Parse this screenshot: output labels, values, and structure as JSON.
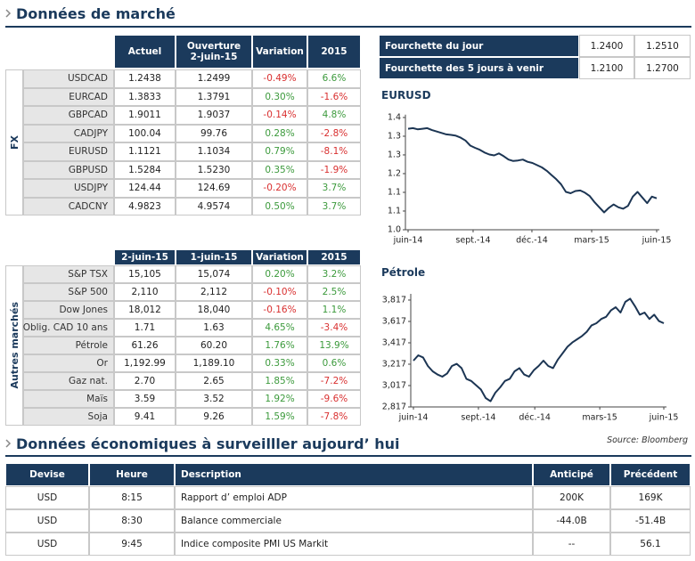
{
  "sections": {
    "market": "Données de marché",
    "economic": "Données économiques à surveilller aujourd’ hui"
  },
  "fx_table": {
    "group": "FX",
    "headers": [
      "Actuel",
      [
        "Ouverture",
        "2-juin-15"
      ],
      "Variation",
      "2015"
    ],
    "rows": [
      [
        "USDCAD",
        "1.2438",
        "1.2499",
        "-0.49%",
        "6.6%"
      ],
      [
        "EURCAD",
        "1.3833",
        "1.3791",
        "0.30%",
        "-1.6%"
      ],
      [
        "GBPCAD",
        "1.9011",
        "1.9037",
        "-0.14%",
        "4.8%"
      ],
      [
        "CADJPY",
        "100.04",
        "99.76",
        "0.28%",
        "-2.8%"
      ],
      [
        "EURUSD",
        "1.1121",
        "1.1034",
        "0.79%",
        "-8.1%"
      ],
      [
        "GBPUSD",
        "1.5284",
        "1.5230",
        "0.35%",
        "-1.9%"
      ],
      [
        "USDJPY",
        "124.44",
        "124.69",
        "-0.20%",
        "3.7%"
      ],
      [
        "CADCNY",
        "4.9823",
        "4.9574",
        "0.50%",
        "3.7%"
      ]
    ]
  },
  "other_table": {
    "group": "Autres marchés",
    "headers": [
      "2-juin-15",
      "1-juin-15",
      "Variation",
      "2015"
    ],
    "rows": [
      [
        "S&P TSX",
        "15,105",
        "15,074",
        "0.20%",
        "3.2%"
      ],
      [
        "S&P 500",
        "2,110",
        "2,112",
        "-0.10%",
        "2.5%"
      ],
      [
        "Dow Jones",
        "18,012",
        "18,040",
        "-0.16%",
        "1.1%"
      ],
      [
        "Oblig. CAD 10 ans",
        "1.71",
        "1.63",
        "4.65%",
        "-3.4%"
      ],
      [
        "Pétrole",
        "61.26",
        "60.20",
        "1.76%",
        "13.9%"
      ],
      [
        "Or",
        "1,192.99",
        "1,189.10",
        "0.33%",
        "0.6%"
      ],
      [
        "Gaz nat.",
        "2.70",
        "2.65",
        "1.85%",
        "-7.2%"
      ],
      [
        "Maïs",
        "3.59",
        "3.52",
        "1.92%",
        "-9.6%"
      ],
      [
        "Soja",
        "9.41",
        "9.26",
        "1.59%",
        "-7.8%"
      ]
    ]
  },
  "range_table": {
    "rows": [
      [
        "Fourchette du jour",
        "1.2400",
        "1.2510"
      ],
      [
        "Fourchette des 5 jours à venir",
        "1.2100",
        "1.2700"
      ]
    ]
  },
  "chart_data": [
    {
      "type": "line",
      "title": "EURUSD",
      "color": "#1c3553",
      "values": [
        1.36,
        1.362,
        1.358,
        1.36,
        1.362,
        1.355,
        1.35,
        1.345,
        1.34,
        1.338,
        1.335,
        1.328,
        1.318,
        1.3,
        1.292,
        1.285,
        1.275,
        1.268,
        1.265,
        1.272,
        1.262,
        1.25,
        1.245,
        1.247,
        1.25,
        1.242,
        1.238,
        1.23,
        1.222,
        1.21,
        1.195,
        1.18,
        1.162,
        1.135,
        1.13,
        1.138,
        1.14,
        1.132,
        1.12,
        1.098,
        1.08,
        1.062,
        1.078,
        1.09,
        1.08,
        1.075,
        1.085,
        1.118,
        1.135,
        1.115,
        1.095,
        1.118,
        1.112
      ],
      "xlim": [
        0,
        52
      ],
      "xticks": [
        {
          "value": 0,
          "label": "juin-14"
        },
        {
          "value": 13.6,
          "label": "sept.-14"
        },
        {
          "value": 25.9,
          "label": "déc.-14"
        },
        {
          "value": 38.4,
          "label": "mars-15"
        },
        {
          "value": 52,
          "label": "juin-15"
        }
      ],
      "ylim": [
        1.0,
        1.41
      ],
      "yticks": [
        {
          "value": 1.0,
          "label": "1.0"
        },
        {
          "value": 1.0667,
          "label": "1.1"
        },
        {
          "value": 1.1333,
          "label": "1.1"
        },
        {
          "value": 1.2,
          "label": "1.2"
        },
        {
          "value": 1.2667,
          "label": "1.3"
        },
        {
          "value": 1.3333,
          "label": "1.3"
        },
        {
          "value": 1.4,
          "label": "1.4"
        }
      ]
    },
    {
      "type": "line",
      "title": "Pétrole",
      "color": "#1c3553",
      "values": [
        3250,
        3300,
        3280,
        3200,
        3150,
        3120,
        3100,
        3130,
        3200,
        3220,
        3180,
        3080,
        3060,
        3020,
        2980,
        2900,
        2870,
        2950,
        3000,
        3060,
        3080,
        3150,
        3180,
        3120,
        3100,
        3160,
        3200,
        3250,
        3200,
        3180,
        3260,
        3320,
        3380,
        3420,
        3450,
        3480,
        3520,
        3580,
        3600,
        3640,
        3660,
        3720,
        3750,
        3700,
        3800,
        3830,
        3760,
        3680,
        3700,
        3640,
        3680,
        3620,
        3600
      ],
      "xlim": [
        0,
        52
      ],
      "xticks": [
        {
          "value": 0,
          "label": "juin-14"
        },
        {
          "value": 13.5,
          "label": "sept.-14"
        },
        {
          "value": 25.2,
          "label": "déc.-14"
        },
        {
          "value": 38.7,
          "label": "mars-15"
        },
        {
          "value": 52,
          "label": "juin-15"
        }
      ],
      "ylim": [
        2817,
        3875
      ],
      "yticks": [
        {
          "value": 2817,
          "label": "2,817"
        },
        {
          "value": 3017,
          "label": "3,017"
        },
        {
          "value": 3217,
          "label": "3,217"
        },
        {
          "value": 3417,
          "label": "3,417"
        },
        {
          "value": 3617,
          "label": "3,617"
        },
        {
          "value": 3817,
          "label": "3,817"
        }
      ]
    }
  ],
  "source": "Source: Bloomberg",
  "econ_table": {
    "headers": [
      "Devise",
      "Heure",
      "Description",
      "Anticipé",
      "Précédent"
    ],
    "rows": [
      [
        "USD",
        "8:15",
        "Rapport d’ emploi ADP",
        "200K",
        "169K"
      ],
      [
        "USD",
        "8:30",
        "Balance commerciale",
        "-44.0B",
        "-51.4B"
      ],
      [
        "USD",
        "9:45",
        "Indice composite PMI US Markit",
        "--",
        "56.1"
      ]
    ]
  }
}
